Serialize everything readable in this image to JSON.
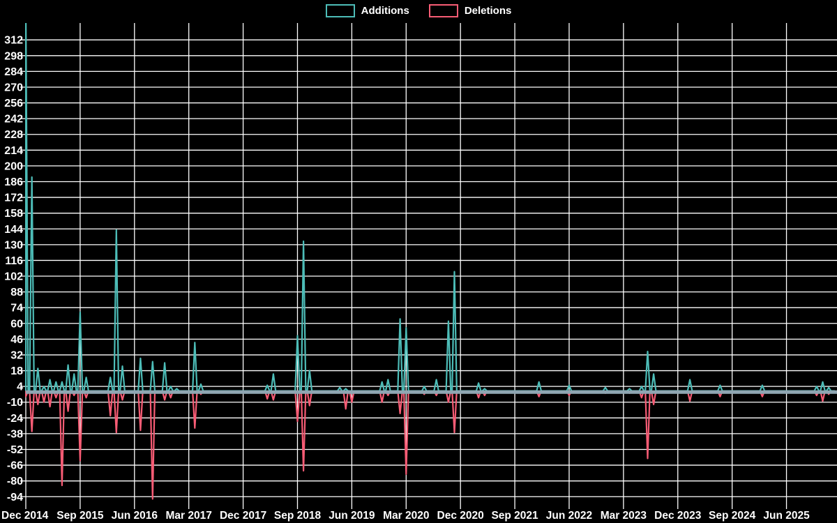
{
  "legend": {
    "items": [
      {
        "label": "Additions",
        "color": "#4dbdb8"
      },
      {
        "label": "Deletions",
        "color": "#f85c75"
      }
    ]
  },
  "colors": {
    "background": "#000000",
    "grid": "#ffffff",
    "text": "#ffffff",
    "additions": "#4dbdb8",
    "deletions": "#f85c75",
    "zero_baseline": "#8fa6b2"
  },
  "chart_data": {
    "type": "line",
    "title": "",
    "legend_position": "top",
    "grid": true,
    "x_axis": {
      "start_month_label": "Dec 2014",
      "tick_labels": [
        "Dec 2014",
        "Sep 2015",
        "Jun 2016",
        "Mar 2017",
        "Dec 2017",
        "Sep 2018",
        "Jun 2019",
        "Mar 2020",
        "Dec 2020",
        "Sep 2021",
        "Jun 2022",
        "Mar 2023",
        "Dec 2023",
        "Sep 2024",
        "Jun 2025"
      ],
      "months_per_tick": 9,
      "total_months": 135
    },
    "y_axis": {
      "tick_labels": [
        312,
        298,
        284,
        270,
        256,
        242,
        228,
        214,
        200,
        186,
        172,
        158,
        144,
        130,
        116,
        102,
        88,
        74,
        60,
        46,
        32,
        18,
        4,
        -10,
        -24,
        -38,
        -52,
        -66,
        -80,
        -94
      ],
      "tick_step": 14,
      "render_range": [
        -105,
        327
      ]
    },
    "baseline": {
      "value": 0,
      "color": "#8fa6b2"
    },
    "series": [
      {
        "name": "Additions",
        "color": "#4dbdb8",
        "points_by_month_index": {
          "0": 340,
          "1": 190,
          "2": 20,
          "3": 4,
          "4": 10,
          "5": 8,
          "6": 8,
          "7": 23,
          "8": 15,
          "9": 70,
          "10": 12,
          "14": 12,
          "15": 143,
          "16": 22,
          "19": 29,
          "21": 26,
          "23": 25,
          "24": 4,
          "25": 2,
          "28": 43,
          "29": 6,
          "40": 5,
          "41": 15,
          "45": 49,
          "46": 133,
          "47": 18,
          "52": 3,
          "53": 2,
          "59": 8,
          "60": 10,
          "62": 64,
          "63": 56,
          "66": 4,
          "68": 10,
          "70": 62,
          "71": 106,
          "75": 7,
          "76": 2,
          "85": 8,
          "90": 5,
          "96": 3,
          "100": 2,
          "102": 4,
          "103": 35,
          "104": 15,
          "110": 10,
          "115": 5,
          "122": 5,
          "131": 4,
          "132": 8,
          "133": 3
        }
      },
      {
        "name": "Deletions",
        "color": "#f85c75",
        "points_by_month_index": {
          "0": -5,
          "1": -36,
          "2": -12,
          "3": -10,
          "4": -14,
          "5": -6,
          "6": -84,
          "7": -18,
          "8": -4,
          "9": -62,
          "10": -6,
          "14": -22,
          "15": -37,
          "16": -8,
          "19": -35,
          "21": -96,
          "23": -8,
          "24": -6,
          "25": -1,
          "28": -33,
          "29": -3,
          "40": -7,
          "41": -8,
          "45": -27,
          "46": -71,
          "47": -13,
          "53": -16,
          "54": -10,
          "59": -10,
          "60": -4,
          "62": -20,
          "63": -74,
          "66": -3,
          "68": -4,
          "70": -10,
          "71": -37,
          "75": -6,
          "76": -4,
          "85": -5,
          "90": -4,
          "96": -2,
          "100": -2,
          "102": -6,
          "103": -60,
          "104": -12,
          "110": -9,
          "115": -5,
          "122": -5,
          "131": -4,
          "132": -9,
          "133": -3
        }
      }
    ]
  }
}
